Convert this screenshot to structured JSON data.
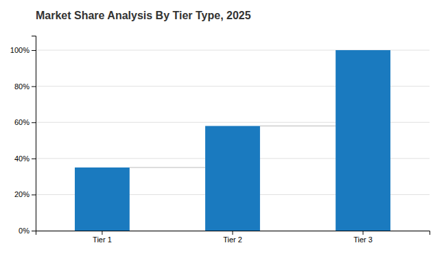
{
  "chart_data": {
    "type": "bar",
    "title": "Market Share Analysis By Tier Type, 2025",
    "categories": [
      "Tier 1",
      "Tier 2",
      "Tier 3"
    ],
    "values": [
      35,
      58,
      100
    ],
    "color": "#1a7abf",
    "ylim": [
      0,
      108
    ],
    "yticks": [
      {
        "value": 0,
        "label": "0%"
      },
      {
        "value": 20,
        "label": "20%"
      },
      {
        "value": 40,
        "label": "40%"
      },
      {
        "value": 60,
        "label": "60%"
      },
      {
        "value": 80,
        "label": "80%"
      },
      {
        "value": 100,
        "label": "100%"
      }
    ],
    "grid": true
  }
}
